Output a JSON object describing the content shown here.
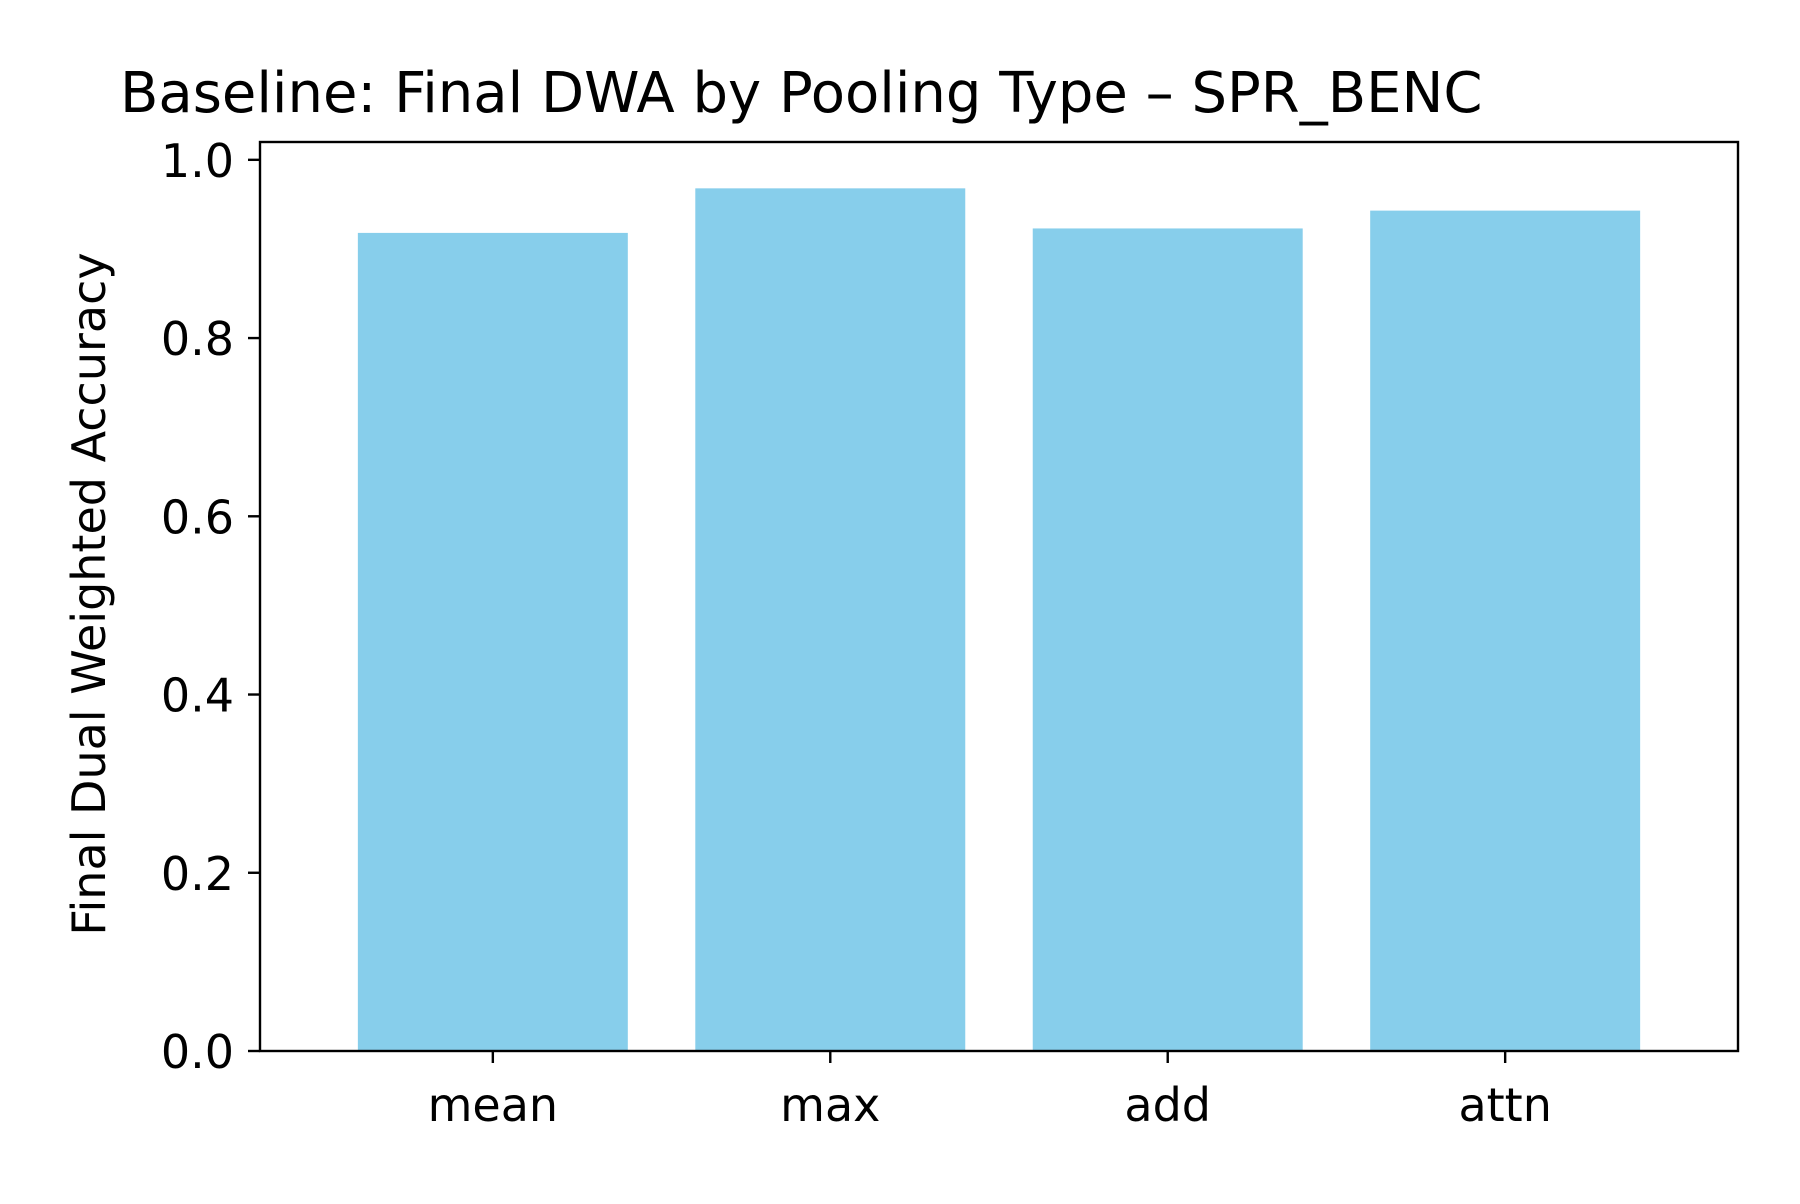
{
  "chart_data": {
    "type": "bar",
    "title": "Baseline: Final DWA by Pooling Type – SPR_BENC",
    "xlabel": "",
    "ylabel": "Final Dual Weighted Accuracy",
    "categories": [
      "mean",
      "max",
      "add",
      "attn"
    ],
    "values": [
      0.918,
      0.968,
      0.923,
      0.943
    ],
    "ylim": [
      0,
      1.02
    ],
    "yticks": [
      "0.0",
      "0.2",
      "0.4",
      "0.6",
      "0.8",
      "1.0"
    ],
    "grid": false,
    "bar_color": "#87CEEB"
  }
}
